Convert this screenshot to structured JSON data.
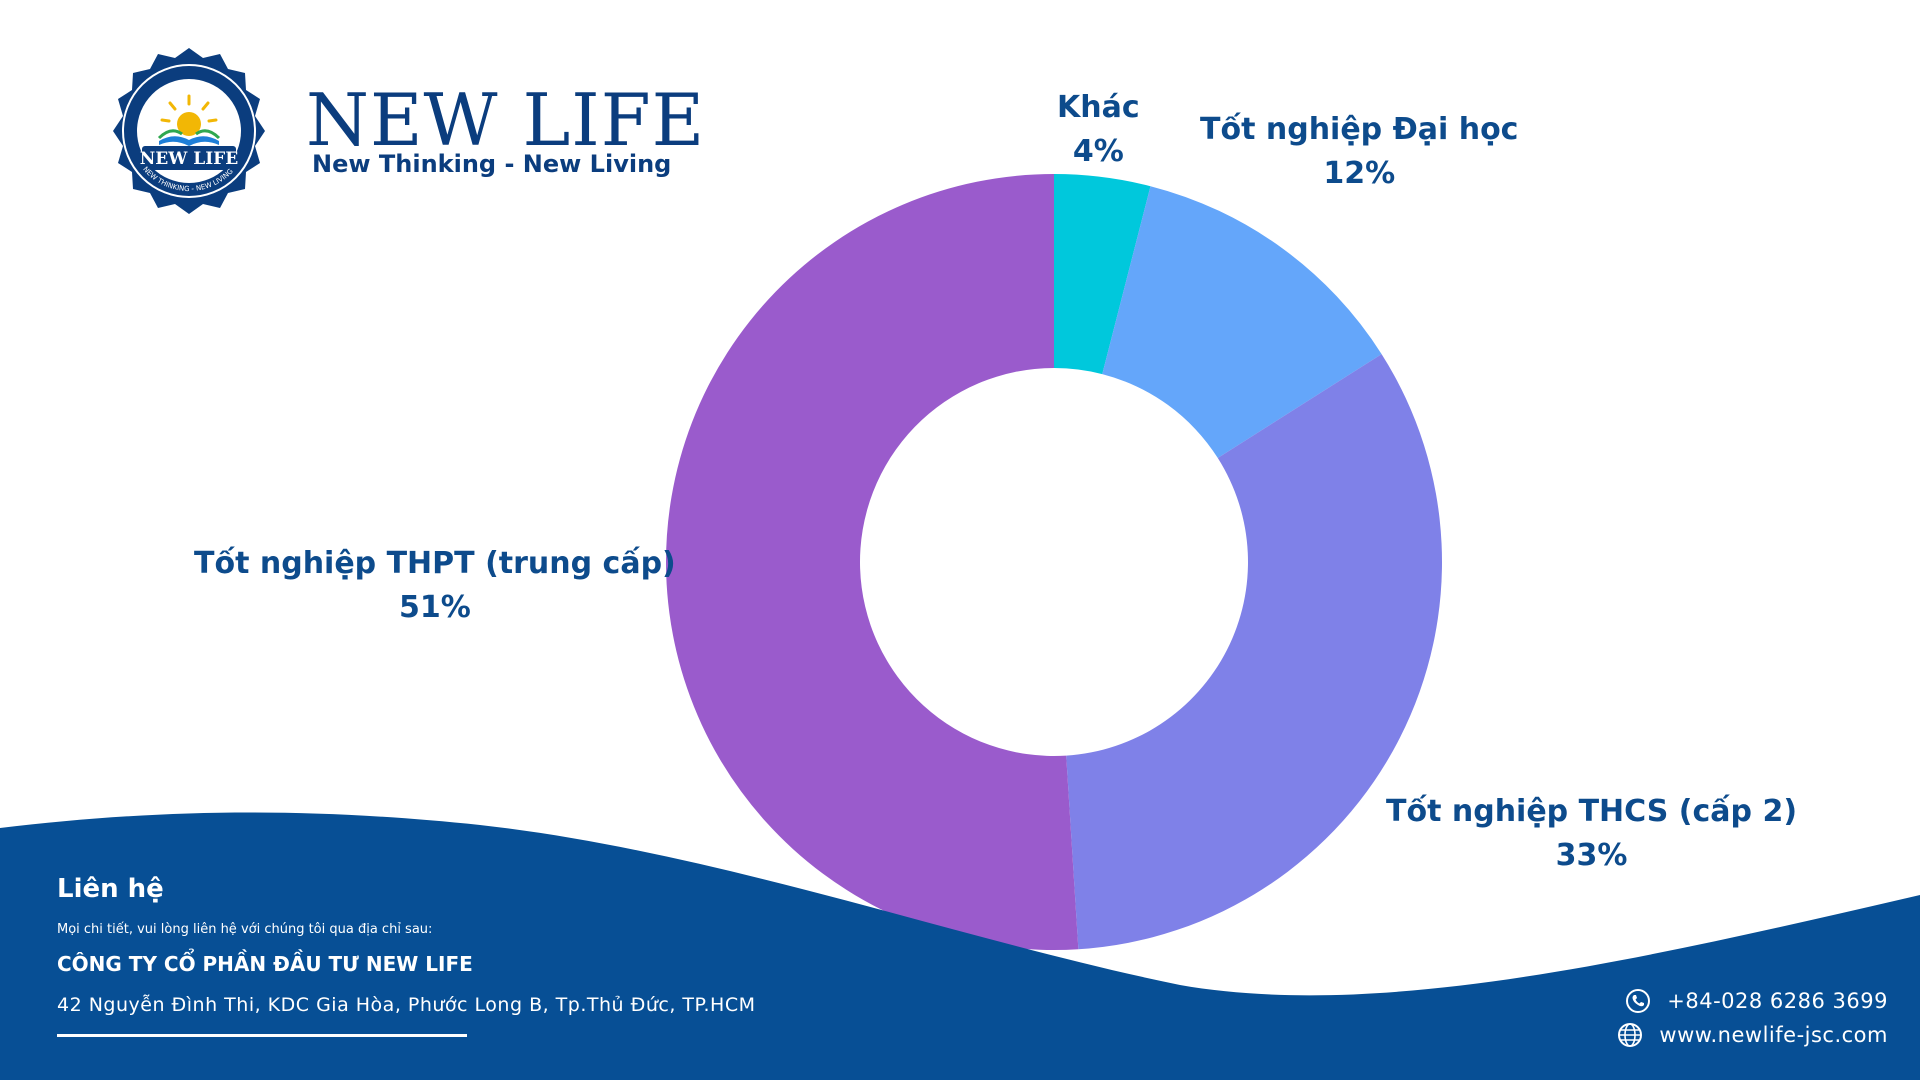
{
  "brand": {
    "name": "NEW LIFE",
    "tagline": "New Thinking - New Living",
    "badge_text": "NEW LIFE",
    "badge_ring_text": "NEW THINKING - NEW LIVING",
    "color": "#0b3d7e"
  },
  "chart_data": {
    "type": "pie",
    "categories": [
      "Khác",
      "Tốt nghiệp Đại học",
      "Tốt nghiệp THCS (cấp 2)",
      "Tốt nghiệp THPT (trung cấp)"
    ],
    "values": [
      4,
      12,
      33,
      51
    ],
    "value_labels": [
      "4%",
      "12%",
      "33%",
      "51%"
    ],
    "colors": [
      "#00c8dc",
      "#64a6fa",
      "#7f81e8",
      "#9a5bcc"
    ],
    "donut": true,
    "legend": "none",
    "label_color": "#0d4b8c"
  },
  "footer": {
    "heading": "Liên hệ",
    "note": "Mọi chi tiết, vui lòng liên hệ với chúng tôi qua địa chỉ sau:",
    "company": "CÔNG TY CỔ PHẦN ĐẦU TƯ NEW LIFE",
    "address": "42 Nguyễn Đình Thi, KDC Gia Hòa, Phước Long B, Tp.Thủ Đức, TP.HCM",
    "phone": "+84-028 6286 3699",
    "website": "www.newlife-jsc.com",
    "phone_icon": "phone-icon",
    "web_icon": "globe-icon",
    "color": "#074f95"
  }
}
